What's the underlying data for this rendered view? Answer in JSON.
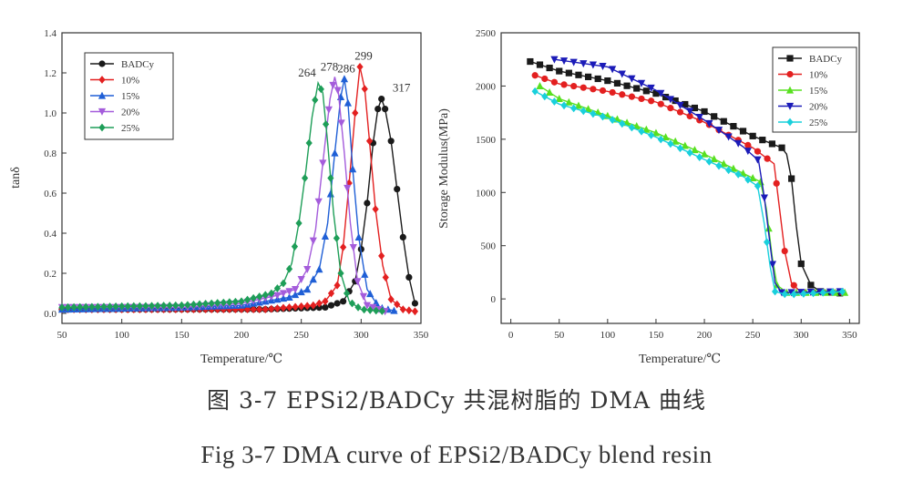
{
  "colors": {
    "BADCy": "#1a1a1a",
    "10%": "#e32020",
    "15%": "#1f5fd6",
    "20%": "#a45cdb",
    "25%": "#1e9e58",
    "20%_right": "#1b1bb8",
    "25%_right": "#19d0dc",
    "15%_right": "#58e020"
  },
  "caption": {
    "cn": "图 3-7 EPSi2/BADCy 共混树脂的 DMA 曲线",
    "en": "Fig 3-7 DMA curve of EPSi2/BADCy blend resin"
  },
  "chart_data": [
    {
      "type": "line",
      "title": "",
      "xlabel": "Temperature/℃",
      "ylabel": "tanδ",
      "xlim": [
        50,
        350
      ],
      "ylim": [
        -0.05,
        1.4
      ],
      "xticks": [
        "50",
        "100",
        "150",
        "200",
        "250",
        "300",
        "350"
      ],
      "yticks": [
        "0.0",
        "0.2",
        "0.4",
        "0.6",
        "0.8",
        "1.0",
        "1.2",
        "1.4"
      ],
      "legend_position": "top-left",
      "series": [
        {
          "name": "BADCy",
          "marker": "circle",
          "peak_label": "317",
          "points": [
            [
              50,
              0.02
            ],
            [
              150,
              0.02
            ],
            [
              220,
              0.02
            ],
            [
              270,
              0.03
            ],
            [
              285,
              0.06
            ],
            [
              295,
              0.16
            ],
            [
              300,
              0.32
            ],
            [
              305,
              0.55
            ],
            [
              310,
              0.85
            ],
            [
              314,
              1.02
            ],
            [
              317,
              1.07
            ],
            [
              320,
              1.02
            ],
            [
              325,
              0.86
            ],
            [
              330,
              0.62
            ],
            [
              335,
              0.38
            ],
            [
              340,
              0.18
            ],
            [
              345,
              0.05
            ]
          ]
        },
        {
          "name": "10%",
          "marker": "diamond",
          "peak_label": "299",
          "points": [
            [
              50,
              0.02
            ],
            [
              150,
              0.02
            ],
            [
              220,
              0.02
            ],
            [
              260,
              0.04
            ],
            [
              270,
              0.06
            ],
            [
              280,
              0.14
            ],
            [
              285,
              0.33
            ],
            [
              290,
              0.65
            ],
            [
              295,
              1.0
            ],
            [
              299,
              1.23
            ],
            [
              303,
              1.12
            ],
            [
              307,
              0.86
            ],
            [
              312,
              0.52
            ],
            [
              318,
              0.24
            ],
            [
              325,
              0.07
            ],
            [
              335,
              0.02
            ],
            [
              345,
              0.01
            ]
          ]
        },
        {
          "name": "15%",
          "marker": "triangle-up",
          "peak_label": "286",
          "points": [
            [
              50,
              0.02
            ],
            [
              150,
              0.03
            ],
            [
              200,
              0.04
            ],
            [
              240,
              0.08
            ],
            [
              255,
              0.12
            ],
            [
              265,
              0.22
            ],
            [
              272,
              0.45
            ],
            [
              278,
              0.8
            ],
            [
              283,
              1.08
            ],
            [
              286,
              1.17
            ],
            [
              289,
              1.05
            ],
            [
              293,
              0.72
            ],
            [
              298,
              0.38
            ],
            [
              305,
              0.12
            ],
            [
              315,
              0.03
            ],
            [
              330,
              0.01
            ]
          ]
        },
        {
          "name": "20%",
          "marker": "triangle-down",
          "peak_label": "278",
          "points": [
            [
              50,
              0.03
            ],
            [
              150,
              0.03
            ],
            [
              200,
              0.05
            ],
            [
              230,
              0.09
            ],
            [
              245,
              0.12
            ],
            [
              255,
              0.22
            ],
            [
              262,
              0.42
            ],
            [
              268,
              0.75
            ],
            [
              274,
              1.07
            ],
            [
              278,
              1.18
            ],
            [
              281,
              1.1
            ],
            [
              286,
              0.8
            ],
            [
              291,
              0.45
            ],
            [
              297,
              0.16
            ],
            [
              305,
              0.04
            ],
            [
              320,
              0.01
            ]
          ]
        },
        {
          "name": "25%",
          "marker": "diamond",
          "peak_label": "264",
          "points": [
            [
              50,
              0.03
            ],
            [
              150,
              0.04
            ],
            [
              200,
              0.06
            ],
            [
              225,
              0.1
            ],
            [
              235,
              0.15
            ],
            [
              242,
              0.25
            ],
            [
              248,
              0.45
            ],
            [
              254,
              0.72
            ],
            [
              259,
              0.98
            ],
            [
              264,
              1.15
            ],
            [
              268,
              1.1
            ],
            [
              272,
              0.85
            ],
            [
              277,
              0.5
            ],
            [
              283,
              0.2
            ],
            [
              290,
              0.06
            ],
            [
              300,
              0.02
            ],
            [
              320,
              0.01
            ]
          ]
        }
      ]
    },
    {
      "type": "line",
      "title": "",
      "xlabel": "Temperature/℃",
      "ylabel": "Storage Modulus(MPa)",
      "xlim": [
        -10,
        360
      ],
      "ylim": [
        -230,
        2500
      ],
      "xticks": [
        "0",
        "50",
        "100",
        "150",
        "200",
        "250",
        "300",
        "350"
      ],
      "yticks": [
        "0",
        "500",
        "1000",
        "1500",
        "2000",
        "2500"
      ],
      "legend_position": "top-right",
      "series": [
        {
          "name": "BADCy",
          "marker": "square",
          "points": [
            [
              20,
              2230
            ],
            [
              50,
              2140
            ],
            [
              100,
              2050
            ],
            [
              150,
              1930
            ],
            [
              200,
              1760
            ],
            [
              250,
              1530
            ],
            [
              280,
              1420
            ],
            [
              285,
              1360
            ],
            [
              290,
              1130
            ],
            [
              295,
              680
            ],
            [
              300,
              330
            ],
            [
              310,
              130
            ],
            [
              320,
              70
            ],
            [
              345,
              50
            ]
          ]
        },
        {
          "name": "10%",
          "marker": "circle",
          "points": [
            [
              25,
              2100
            ],
            [
              50,
              2020
            ],
            [
              100,
              1950
            ],
            [
              150,
              1850
            ],
            [
              200,
              1660
            ],
            [
              250,
              1420
            ],
            [
              272,
              1270
            ],
            [
              277,
              900
            ],
            [
              283,
              450
            ],
            [
              290,
              150
            ],
            [
              300,
              60
            ],
            [
              345,
              60
            ]
          ]
        },
        {
          "name": "15%",
          "marker": "triangle-up",
          "points": [
            [
              30,
              2000
            ],
            [
              50,
              1880
            ],
            [
              100,
              1720
            ],
            [
              150,
              1560
            ],
            [
              200,
              1360
            ],
            [
              240,
              1180
            ],
            [
              258,
              1100
            ],
            [
              264,
              850
            ],
            [
              270,
              400
            ],
            [
              275,
              130
            ],
            [
              285,
              60
            ],
            [
              345,
              60
            ]
          ]
        },
        {
          "name": "20%",
          "marker": "triangle-down",
          "points": [
            [
              45,
              2250
            ],
            [
              100,
              2180
            ],
            [
              150,
              1960
            ],
            [
              200,
              1680
            ],
            [
              240,
              1430
            ],
            [
              256,
              1300
            ],
            [
              262,
              950
            ],
            [
              268,
              500
            ],
            [
              273,
              150
            ],
            [
              280,
              60
            ],
            [
              345,
              70
            ]
          ]
        },
        {
          "name": "25%",
          "marker": "diamond",
          "points": [
            [
              25,
              1950
            ],
            [
              50,
              1830
            ],
            [
              100,
              1700
            ],
            [
              150,
              1520
            ],
            [
              200,
              1310
            ],
            [
              240,
              1150
            ],
            [
              255,
              1060
            ],
            [
              262,
              700
            ],
            [
              268,
              300
            ],
            [
              273,
              70
            ],
            [
              285,
              40
            ],
            [
              345,
              70
            ]
          ]
        }
      ]
    }
  ]
}
